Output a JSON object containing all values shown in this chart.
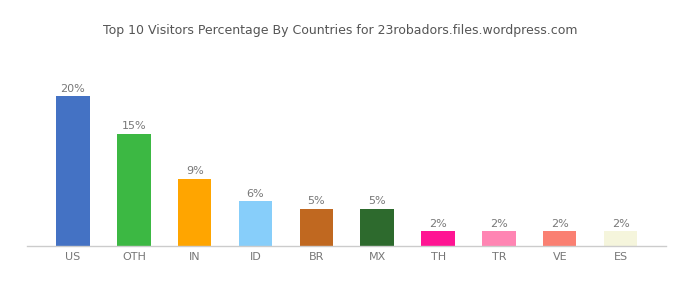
{
  "categories": [
    "US",
    "OTH",
    "IN",
    "ID",
    "BR",
    "MX",
    "TH",
    "TR",
    "VE",
    "ES"
  ],
  "values": [
    20,
    15,
    9,
    6,
    5,
    5,
    2,
    2,
    2,
    2
  ],
  "bar_colors": [
    "#4472C4",
    "#3CB843",
    "#FFA500",
    "#87CEFA",
    "#C06820",
    "#2D6A2D",
    "#FF1493",
    "#FF85B3",
    "#FA8072",
    "#F5F5DC"
  ],
  "title": "Top 10 Visitors Percentage By Countries for 23robadors.files.wordpress.com",
  "ylim": [
    0,
    24
  ],
  "label_fontsize": 8,
  "tick_fontsize": 8,
  "title_fontsize": 9,
  "background_color": "#ffffff",
  "bar_width": 0.55,
  "label_color": "#777777",
  "tick_color": "#777777",
  "spine_color": "#cccccc"
}
